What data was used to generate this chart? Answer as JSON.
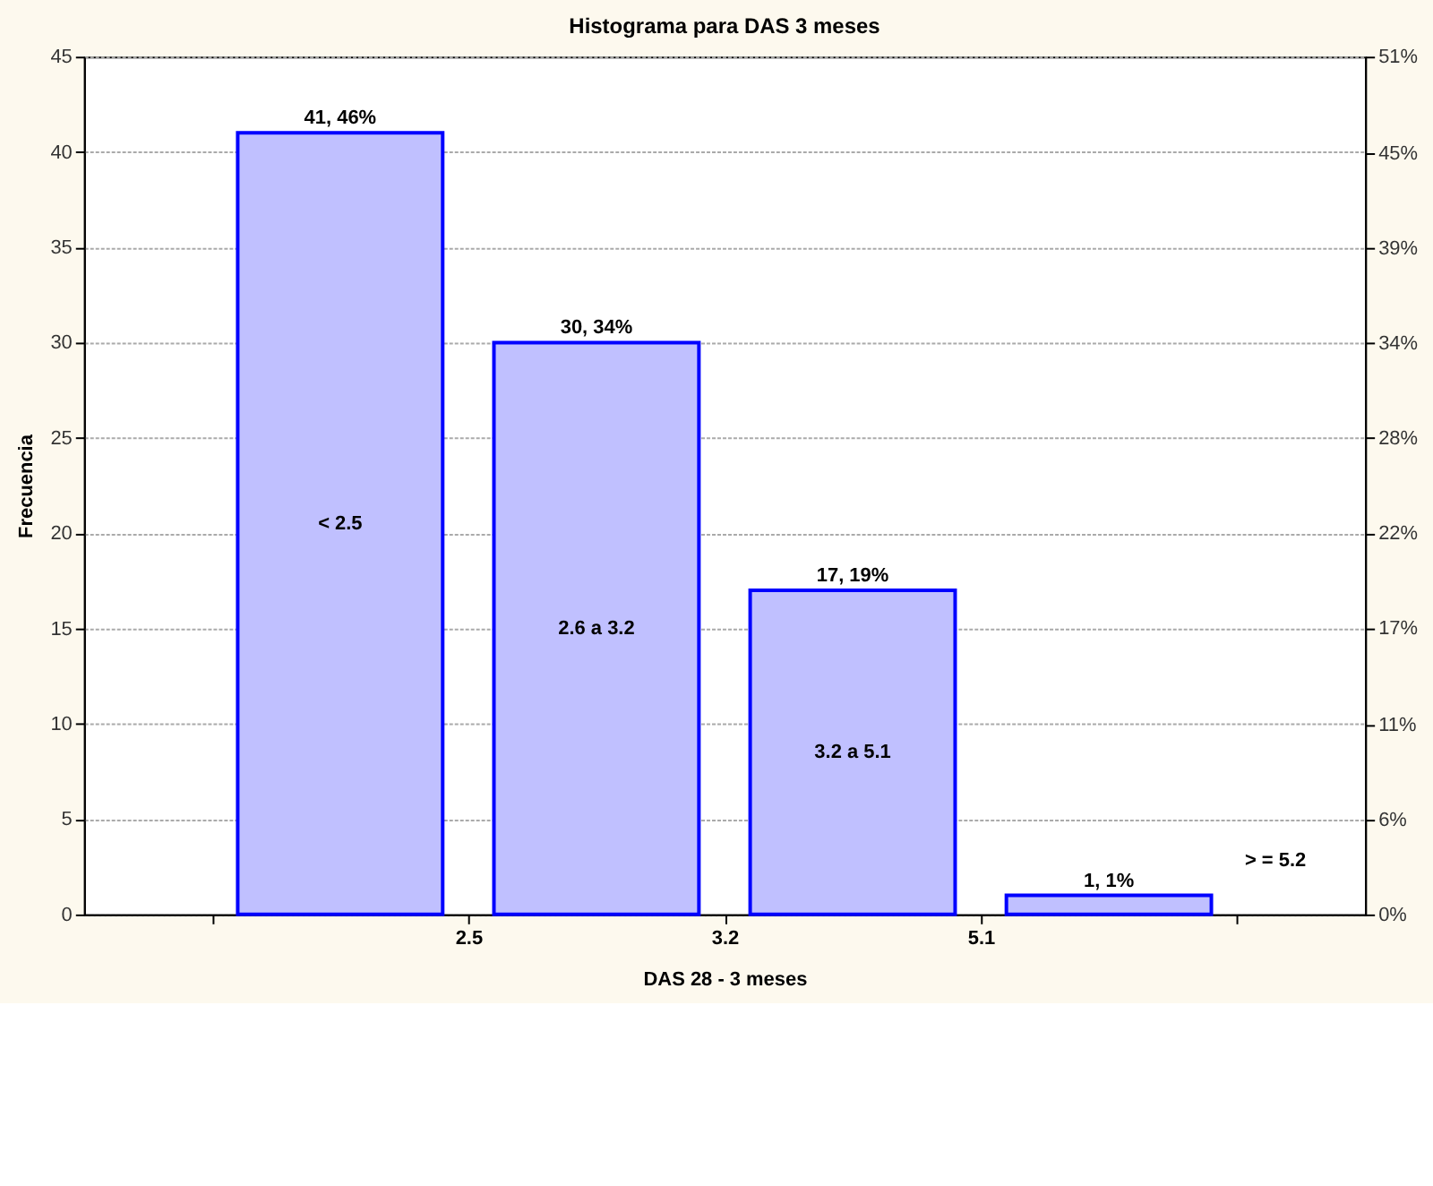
{
  "chart_data": {
    "type": "bar",
    "title": "Histograma para DAS 3 meses",
    "xlabel": "DAS 28 - 3 meses",
    "ylabel": "Frecuencia",
    "categories": [
      null,
      null,
      null,
      null
    ],
    "values": [
      41,
      30,
      17,
      1
    ],
    "color": "#c0c0ff",
    "value_labels": [
      "41, 46%",
      "30, 34%",
      "17, 19%",
      "1, 1%"
    ],
    "annotations": [
      "2.5",
      "3.2",
      "5.1",
      "< 2.5",
      "2.6 a 3.2",
      "3.2 a 5.1",
      "> = 5.2"
    ],
    "ylim": [
      0,
      45
    ],
    "yticks": [
      0,
      5,
      10,
      15,
      20,
      25,
      30,
      35,
      40,
      45
    ],
    "y2lim": [
      0,
      50.6
    ],
    "y2ticks": [
      {
        "value": 0,
        "label": "0%"
      },
      {
        "value": 5.6,
        "label": "6%"
      },
      {
        "value": 11.2,
        "label": "11%"
      },
      {
        "value": 16.9,
        "label": "17%"
      },
      {
        "value": 22.5,
        "label": "22%"
      },
      {
        "value": 28.1,
        "label": "28%"
      },
      {
        "value": 33.7,
        "label": "34%"
      },
      {
        "value": 39.3,
        "label": "39%"
      },
      {
        "value": 44.9,
        "label": "45%"
      },
      {
        "value": 50.6,
        "label": "51%"
      }
    ],
    "grid": "y"
  }
}
